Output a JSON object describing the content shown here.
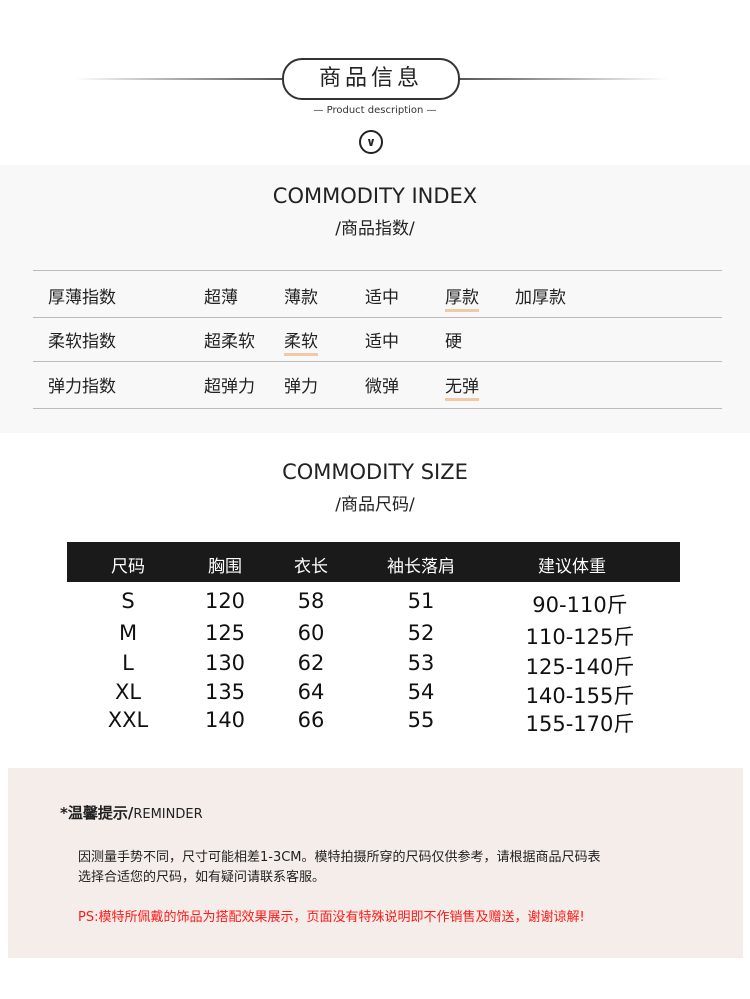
{
  "header": {
    "title": "商品信息",
    "subtitle": "— Product description —",
    "icon": "chevron-down-circle-icon"
  },
  "index": {
    "title": "COMMODITY INDEX",
    "subtitle": "/商品指数/",
    "rows": [
      {
        "label": "厚薄指数",
        "options": [
          "超薄",
          "薄款",
          "适中",
          "厚款",
          "加厚款"
        ],
        "selected": "厚款"
      },
      {
        "label": "柔软指数",
        "options": [
          "超柔软",
          "柔软",
          "适中",
          "硬"
        ],
        "selected": "柔软"
      },
      {
        "label": "弹力指数",
        "options": [
          "超弹力",
          "弹力",
          "微弹",
          "无弹"
        ],
        "selected": "无弹"
      }
    ],
    "highlight_color": "#efc9a8"
  },
  "size": {
    "title": "COMMODITY SIZE",
    "subtitle": "/商品尺码/",
    "headers": [
      "尺码",
      "胸围",
      "衣长",
      "袖长落肩",
      "建议体重"
    ],
    "rows": [
      [
        "S",
        "120",
        "58",
        "51",
        "90-110斤"
      ],
      [
        "M",
        "125",
        "60",
        "52",
        "110-125斤"
      ],
      [
        "L",
        "130",
        "62",
        "53",
        "125-140斤"
      ],
      [
        "XL",
        "135",
        "64",
        "54",
        "140-155斤"
      ],
      [
        "XXL",
        "140",
        "66",
        "55",
        "155-170斤"
      ]
    ]
  },
  "reminder": {
    "title": "*温馨提示/",
    "title_en": "REMINDER",
    "line1": "因测量手势不同，尺寸可能相差1-3CM。模特拍摄所穿的尺码仅供参考，请根据商品尺码表",
    "line2": "选择合适您的尺码，如有疑问请联系客服。",
    "ps": "PS:模特所佩戴的饰品为搭配效果展示，页面没有特殊说明即不作销售及赠送，谢谢谅解!",
    "ps_color": "#ff1a1a"
  }
}
